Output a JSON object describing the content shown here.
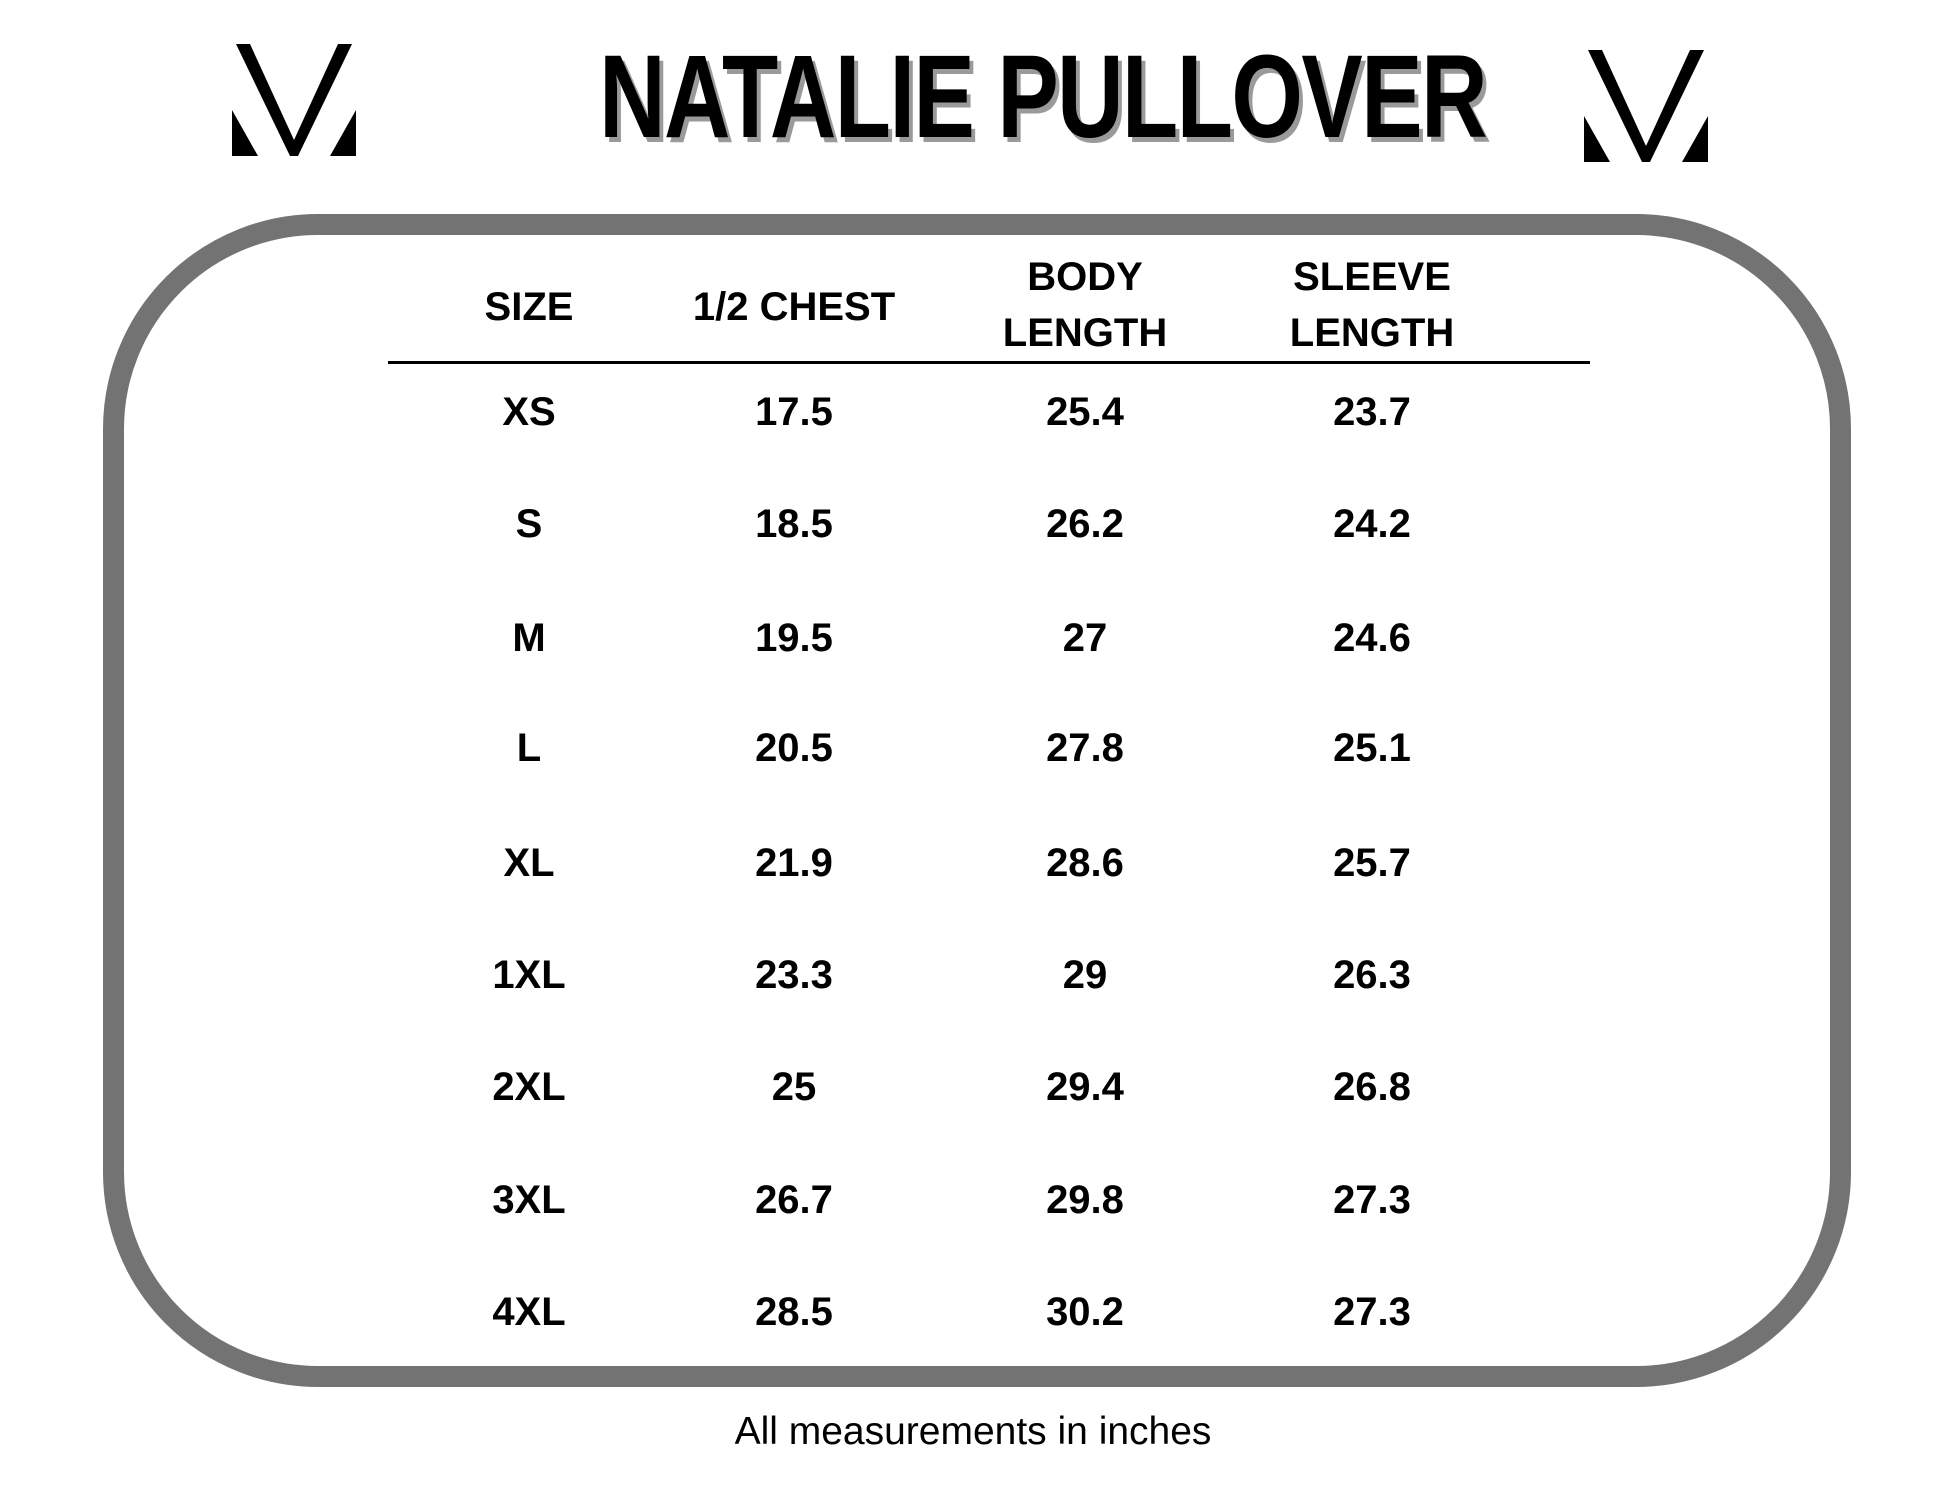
{
  "title": "NATALIE PULLOVER",
  "logo_icon": "mv-monogram-icon",
  "columns": [
    {
      "lines": [
        "SIZE"
      ]
    },
    {
      "lines": [
        "1/2 CHEST"
      ]
    },
    {
      "lines": [
        "BODY",
        "LENGTH"
      ]
    },
    {
      "lines": [
        "SLEEVE",
        "LENGTH"
      ]
    }
  ],
  "rows": [
    [
      "XS",
      "17.5",
      "25.4",
      "23.7"
    ],
    [
      "S",
      "18.5",
      "26.2",
      "24.2"
    ],
    [
      "M",
      "19.5",
      "27",
      "24.6"
    ],
    [
      "L",
      "20.5",
      "27.8",
      "25.1"
    ],
    [
      "XL",
      "21.9",
      "28.6",
      "25.7"
    ],
    [
      "1XL",
      "23.3",
      "29",
      "26.3"
    ],
    [
      "2XL",
      "25",
      "29.4",
      "26.8"
    ],
    [
      "3XL",
      "26.7",
      "29.8",
      "27.3"
    ],
    [
      "4XL",
      "28.5",
      "30.2",
      "27.3"
    ]
  ],
  "footer": "All measurements in inches",
  "colors": {
    "frame": "#737373",
    "title_shadow": "#9a9a9a"
  }
}
